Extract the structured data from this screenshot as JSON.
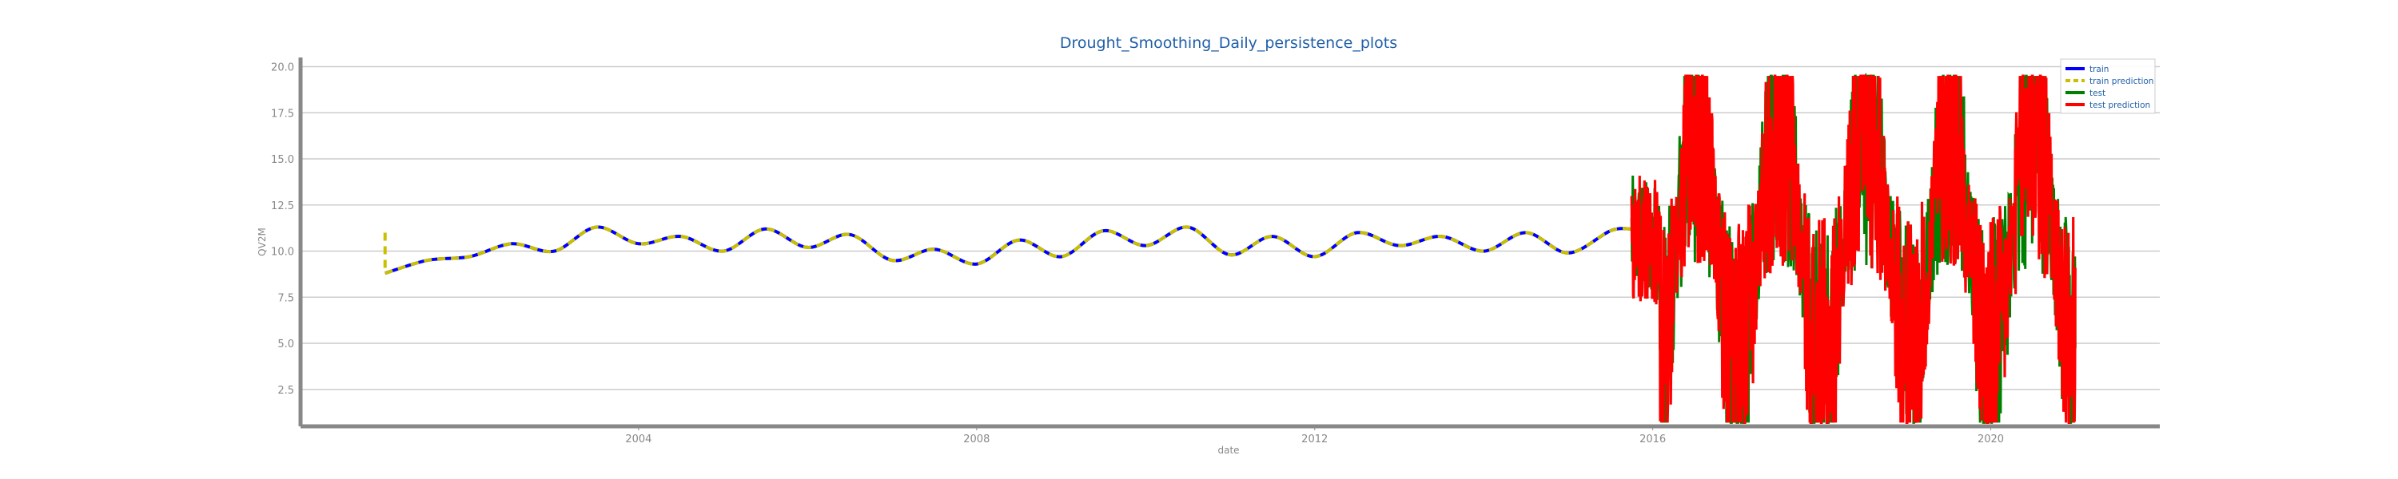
{
  "chart_data": {
    "type": "line",
    "title": "Drought_Smoothing_Daily_persistence_plots",
    "xlabel": "date",
    "ylabel": "QV2M",
    "x_ticks": [
      "2004",
      "2008",
      "2012",
      "2016",
      "2020"
    ],
    "y_ticks": [
      "2.5",
      "5.0",
      "7.5",
      "10.0",
      "12.5",
      "15.0",
      "17.5",
      "20.0"
    ],
    "xlim": [
      "2000-01-01",
      "2022-01-01"
    ],
    "ylim": [
      0.5,
      20.5
    ],
    "grid": "horizontal",
    "legend_position": "top-right",
    "colors": {
      "train": "#0000ff",
      "train_prediction": "#c8c000",
      "test": "#008000",
      "test_prediction": "#ff0000",
      "title": "#1f5fa8",
      "axis": "#888888",
      "grid": "#cccccc"
    },
    "series": [
      {
        "name": "train",
        "dates": [
          "2001-01",
          "2001-07",
          "2002-01",
          "2002-07",
          "2003-01",
          "2003-07",
          "2004-01",
          "2004-07",
          "2005-01",
          "2005-07",
          "2006-01",
          "2006-07",
          "2007-01",
          "2007-07",
          "2008-01",
          "2008-07",
          "2009-01",
          "2009-07",
          "2010-01",
          "2010-07",
          "2011-01",
          "2011-07",
          "2012-01",
          "2012-07",
          "2013-01",
          "2013-07",
          "2014-01",
          "2014-07",
          "2015-01",
          "2015-07",
          "2015-10"
        ],
        "values": [
          8.8,
          9.5,
          9.7,
          10.4,
          10.0,
          11.3,
          10.4,
          10.8,
          10.0,
          11.2,
          10.2,
          10.9,
          9.5,
          10.1,
          9.3,
          10.6,
          9.7,
          11.1,
          10.3,
          11.3,
          9.8,
          10.8,
          9.7,
          11.0,
          10.3,
          10.8,
          10.0,
          11.0,
          9.9,
          11.1,
          11.2
        ]
      },
      {
        "name": "train prediction",
        "dates": [
          "2001-01",
          "2001-07",
          "2002-01",
          "2002-07",
          "2003-01",
          "2003-07",
          "2004-01",
          "2004-07",
          "2005-01",
          "2005-07",
          "2006-01",
          "2006-07",
          "2007-01",
          "2007-07",
          "2008-01",
          "2008-07",
          "2009-01",
          "2009-07",
          "2010-01",
          "2010-07",
          "2011-01",
          "2011-07",
          "2012-01",
          "2012-07",
          "2013-01",
          "2013-07",
          "2014-01",
          "2014-07",
          "2015-01",
          "2015-07",
          "2015-10"
        ],
        "values": [
          8.8,
          9.5,
          9.7,
          10.4,
          10.0,
          11.3,
          10.4,
          10.8,
          10.0,
          11.2,
          10.2,
          10.9,
          9.5,
          10.1,
          9.3,
          10.6,
          9.7,
          11.1,
          10.3,
          11.3,
          9.8,
          10.8,
          9.7,
          11.0,
          10.3,
          10.8,
          10.0,
          11.0,
          9.9,
          11.1,
          11.2
        ],
        "initial_segment": {
          "date": "2001-01",
          "values": [
            11.0,
            8.8
          ]
        }
      },
      {
        "name": "test",
        "start": "2015-10",
        "end": "2021-01",
        "seasonal_pattern": {
          "peaks": [
            {
              "date": "2016-07",
              "value": 19.3
            },
            {
              "date": "2017-07",
              "value": 19.4
            },
            {
              "date": "2018-07",
              "value": 18.6
            },
            {
              "date": "2019-07",
              "value": 19.2
            },
            {
              "date": "2020-07",
              "value": 19.0
            }
          ],
          "troughs": [
            {
              "date": "2016-02",
              "value": 2.2
            },
            {
              "date": "2017-01",
              "value": 1.8
            },
            {
              "date": "2018-01",
              "value": 1.2
            },
            {
              "date": "2019-02",
              "value": 2.8
            },
            {
              "date": "2020-01",
              "value": 2.3
            },
            {
              "date": "2021-01",
              "value": 2.0
            }
          ]
        }
      },
      {
        "name": "test prediction",
        "start": "2015-10",
        "end": "2021-01",
        "seasonal_pattern": {
          "peaks": [
            {
              "date": "2016-07",
              "value": 19.3
            },
            {
              "date": "2017-07",
              "value": 19.4
            },
            {
              "date": "2018-07",
              "value": 18.6
            },
            {
              "date": "2019-07",
              "value": 19.2
            },
            {
              "date": "2020-07",
              "value": 19.0
            }
          ],
          "troughs": [
            {
              "date": "2016-02",
              "value": 2.2
            },
            {
              "date": "2017-01",
              "value": 1.8
            },
            {
              "date": "2018-01",
              "value": 1.2
            },
            {
              "date": "2019-02",
              "value": 2.8
            },
            {
              "date": "2020-01",
              "value": 2.3
            },
            {
              "date": "2021-01",
              "value": 2.0
            }
          ]
        }
      }
    ]
  }
}
